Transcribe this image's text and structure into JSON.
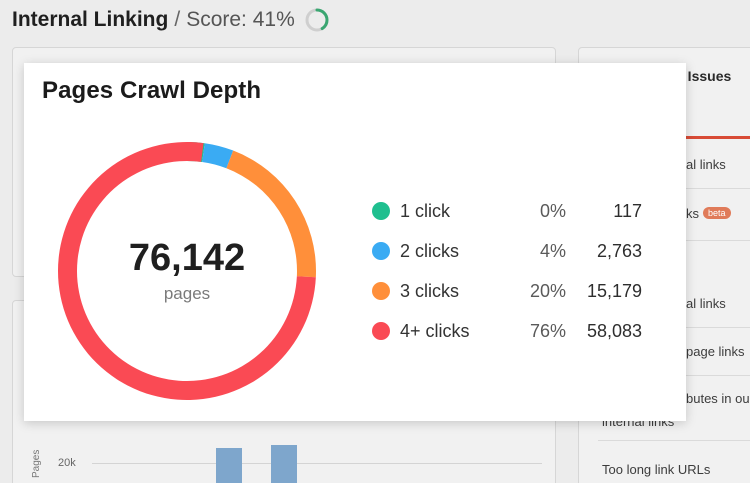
{
  "header": {
    "title": "Internal Linking",
    "separator": "/",
    "score_label": "Score: 41%",
    "score_value": 41,
    "score_color": "#3aa671"
  },
  "issues_panel": {
    "title_fragment": "k Issues",
    "items": [
      {
        "text": "al links"
      },
      {
        "text": "ks",
        "badge": "beta"
      },
      {
        "text": "al links"
      },
      {
        "text": "page links"
      },
      {
        "text": "butes in ou"
      },
      {
        "text": "internal links"
      },
      {
        "text": "Too long link URLs"
      }
    ]
  },
  "background_chart": {
    "axis_label": "Pages",
    "tick": "20k"
  },
  "popup": {
    "title": "Pages Crawl Depth",
    "total": "76,142",
    "unit": "pages"
  },
  "chart_data": {
    "type": "pie",
    "title": "Pages Crawl Depth",
    "center_value": "76,142",
    "center_label": "pages",
    "slices": [
      {
        "label": "1 click",
        "percent_label": "0%",
        "count": "117",
        "value": 117,
        "color": "#1fbf8f"
      },
      {
        "label": "2 clicks",
        "percent_label": "4%",
        "count": "2,763",
        "value": 2763,
        "color": "#3aabf3"
      },
      {
        "label": "3 clicks",
        "percent_label": "20%",
        "count": "15,179",
        "value": 15179,
        "color": "#ff8f3a"
      },
      {
        "label": "4+ clicks",
        "percent_label": "76%",
        "count": "58,083",
        "value": 58083,
        "color": "#fa4a54"
      }
    ],
    "legend_position": "right"
  }
}
